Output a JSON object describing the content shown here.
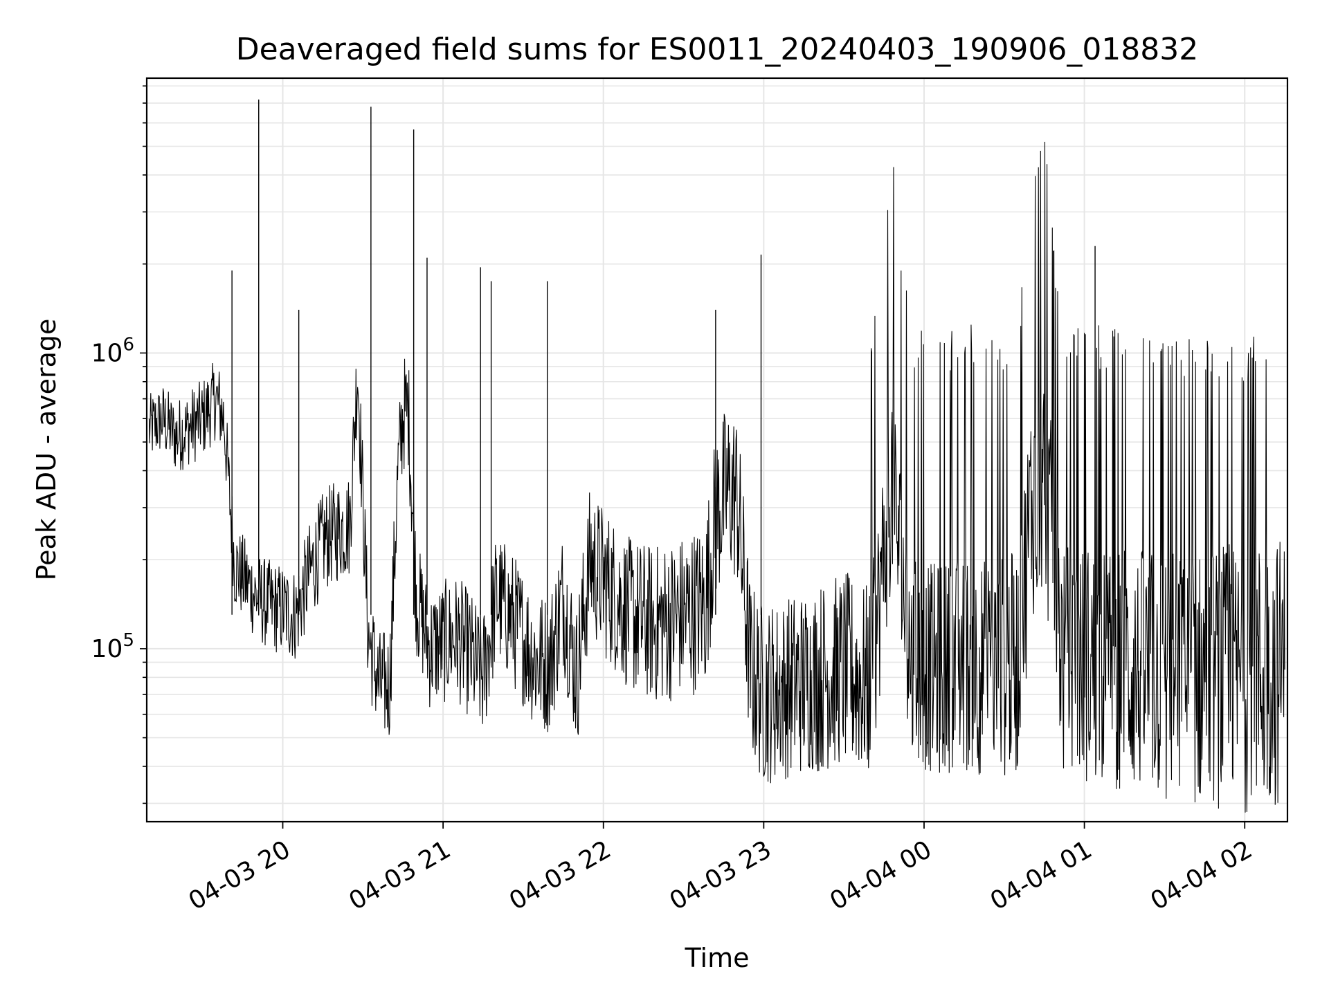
{
  "chart_data": {
    "type": "line",
    "title": "Deaveraged field sums for ES0011_20240403_190906_018832",
    "xlabel": "Time",
    "ylabel": "Peak ADU - average",
    "y_scale": "log",
    "ylim": [
      26000,
      8500000
    ],
    "xlim": [
      "2024-04-03T19:09:06",
      "2024-04-04T02:16:00"
    ],
    "grid": true,
    "x_ticks": [
      {
        "t": "2024-04-03T20:00:00",
        "label": "04-03 20"
      },
      {
        "t": "2024-04-03T21:00:00",
        "label": "04-03 21"
      },
      {
        "t": "2024-04-03T22:00:00",
        "label": "04-03 22"
      },
      {
        "t": "2024-04-03T23:00:00",
        "label": "04-03 23"
      },
      {
        "t": "2024-04-04T00:00:00",
        "label": "04-04 00"
      },
      {
        "t": "2024-04-04T01:00:00",
        "label": "04-04 01"
      },
      {
        "t": "2024-04-04T02:00:00",
        "label": "04-04 02"
      }
    ],
    "y_ticks": [
      {
        "value": 100000,
        "base": "10",
        "exp": "5"
      },
      {
        "value": 1000000,
        "base": "10",
        "exp": "6"
      }
    ],
    "colors": {
      "line": "#000000",
      "grid": "#e6e6e6",
      "axes": "#000000"
    },
    "series": [
      {
        "x": [
          "2024-04-03T19:10:00",
          "2024-04-03T19:15:00",
          "2024-04-03T19:20:00",
          "2024-04-03T19:25:00",
          "2024-04-03T19:30:00",
          "2024-04-03T19:35:00",
          "2024-04-03T19:38:00",
          "2024-04-03T19:42:00",
          "2024-04-03T19:46:00",
          "2024-04-03T19:50:00",
          "2024-04-03T19:55:00",
          "2024-04-03T20:00:00",
          "2024-04-03T20:05:00",
          "2024-04-03T20:10:00",
          "2024-04-03T20:15:00",
          "2024-04-03T20:20:00",
          "2024-04-03T20:25:00",
          "2024-04-03T20:28:00",
          "2024-04-03T20:32:00",
          "2024-04-03T20:36:00",
          "2024-04-03T20:40:00",
          "2024-04-03T20:43:00",
          "2024-04-03T20:45:00",
          "2024-04-03T20:47:00",
          "2024-04-03T20:50:00",
          "2024-04-03T20:55:00",
          "2024-04-03T21:00:00",
          "2024-04-03T21:05:00",
          "2024-04-03T21:10:00",
          "2024-04-03T21:15:00",
          "2024-04-03T21:20:00",
          "2024-04-03T21:25:00",
          "2024-04-03T21:30:00",
          "2024-04-03T21:35:00",
          "2024-04-03T21:40:00",
          "2024-04-03T21:45:00",
          "2024-04-03T21:50:00",
          "2024-04-03T21:55:00",
          "2024-04-03T22:00:00",
          "2024-04-03T22:10:00",
          "2024-04-03T22:20:00",
          "2024-04-03T22:30:00",
          "2024-04-03T22:38:00",
          "2024-04-03T22:42:00",
          "2024-04-03T22:46:00",
          "2024-04-03T22:50:00",
          "2024-04-03T22:55:00",
          "2024-04-03T23:00:00",
          "2024-04-03T23:10:00",
          "2024-04-03T23:20:00",
          "2024-04-03T23:30:00",
          "2024-04-03T23:40:00",
          "2024-04-03T23:48:00",
          "2024-04-03T23:55:00",
          "2024-04-04T00:05:00",
          "2024-04-04T00:15:00",
          "2024-04-04T00:25:00",
          "2024-04-04T00:35:00",
          "2024-04-04T00:40:00",
          "2024-04-04T00:45:00",
          "2024-04-04T00:52:00",
          "2024-04-04T01:00:00",
          "2024-04-04T01:15:00",
          "2024-04-04T01:30:00",
          "2024-04-04T01:45:00",
          "2024-04-04T02:00:00",
          "2024-04-04T02:15:00"
        ],
        "y": [
          550000,
          600000,
          520000,
          560000,
          600000,
          700000,
          600000,
          190000,
          170000,
          150000,
          140000,
          135000,
          130000,
          180000,
          230000,
          250000,
          260000,
          900000,
          110000,
          75000,
          75000,
          380000,
          620000,
          640000,
          150000,
          100000,
          105000,
          110000,
          95000,
          80000,
          150000,
          130000,
          110000,
          90000,
          90000,
          150000,
          80000,
          200000,
          170000,
          130000,
          120000,
          130000,
          140000,
          280000,
          340000,
          330000,
          85000,
          70000,
          75000,
          80000,
          85000,
          75000,
          380000,
          90000,
          85000,
          90000,
          85000,
          90000,
          300000,
          400000,
          90000,
          90000,
          85000,
          80000,
          80000,
          80000,
          85000
        ],
        "spikes": [
          {
            "x": "2024-04-03T19:41:00",
            "y": 1900000
          },
          {
            "x": "2024-04-03T19:51:00",
            "y": 7200000
          },
          {
            "x": "2024-04-03T20:06:00",
            "y": 1400000
          },
          {
            "x": "2024-04-03T20:33:00",
            "y": 6800000
          },
          {
            "x": "2024-04-03T20:49:00",
            "y": 5700000
          },
          {
            "x": "2024-04-03T20:54:00",
            "y": 2100000
          },
          {
            "x": "2024-04-03T21:14:00",
            "y": 1950000
          },
          {
            "x": "2024-04-03T21:18:00",
            "y": 1750000
          },
          {
            "x": "2024-04-03T21:39:00",
            "y": 1750000
          },
          {
            "x": "2024-04-03T22:42:00",
            "y": 1400000
          },
          {
            "x": "2024-04-03T22:59:00",
            "y": 2150000
          },
          {
            "x": "2024-04-04T01:04:00",
            "y": 2300000
          }
        ]
      }
    ]
  }
}
